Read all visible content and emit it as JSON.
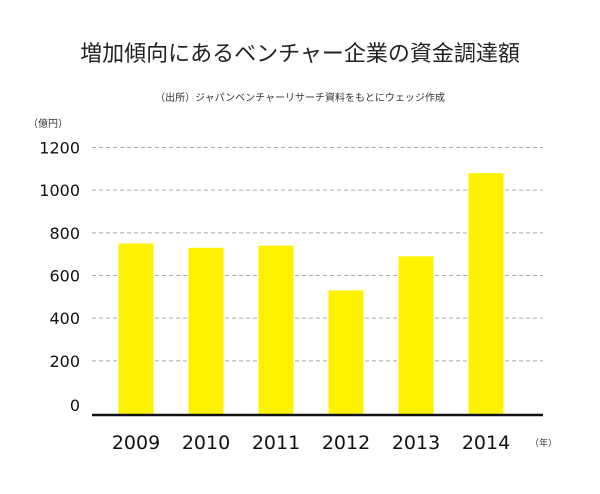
{
  "chart_data": {
    "type": "bar",
    "title": "増加傾向にあるベンチャー企業の資金調達額",
    "subtitle": "（出所）ジャパンベンチャーリサーチ資料をもとにウェッジ作成",
    "ylabel": "（億円）",
    "xlabel": "（年）",
    "categories": [
      "2009",
      "2010",
      "2011",
      "2012",
      "2013",
      "2014"
    ],
    "values": [
      750,
      730,
      740,
      530,
      690,
      1080
    ],
    "ylim": [
      0,
      1200
    ],
    "yticks": [
      0,
      200,
      400,
      600,
      800,
      1000,
      1200
    ],
    "grid": true,
    "bar_color": "#fff200"
  }
}
